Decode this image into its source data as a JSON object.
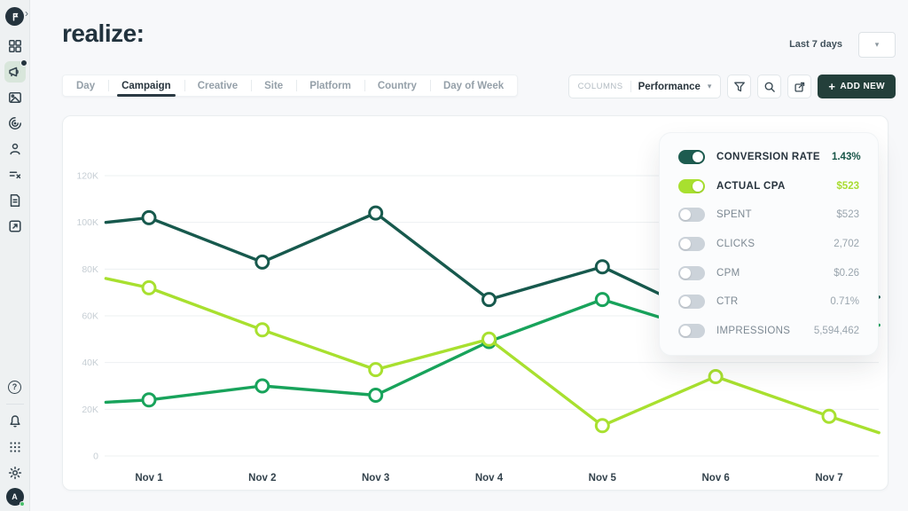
{
  "header": {
    "logo_text": "realize:",
    "date_range": "Last 7 days"
  },
  "glyphs": {
    "caret_down": "▾",
    "chevron_right": "›",
    "help": "?",
    "plus": "+"
  },
  "sidebar": {
    "items": [
      "grid",
      "megaphone",
      "image",
      "spiral",
      "person",
      "list",
      "document",
      "box-arrow"
    ],
    "selected": "megaphone",
    "badge_on": "megaphone",
    "bottom_items": [
      "help",
      "bell",
      "dots-grid",
      "gear",
      "avatar"
    ],
    "avatar_label": "A"
  },
  "toolbar": {
    "tabs": [
      "Day",
      "Campaign",
      "Creative",
      "Site",
      "Platform",
      "Country",
      "Day of Week"
    ],
    "active_tab": "Campaign",
    "columns_label": "COLUMNS",
    "columns_value": "Performance",
    "add_new_label": "ADD NEW"
  },
  "legend": {
    "rows": [
      {
        "label": "CONVERSION RATE",
        "value": "1.43%",
        "on": true,
        "color": "#1d5c50",
        "value_color": "#175447"
      },
      {
        "label": "ACTUAL CPA",
        "value": "$523",
        "on": true,
        "color": "#a8e02f",
        "value_color": "#a9dc32"
      },
      {
        "label": "SPENT",
        "value": "$523",
        "on": false
      },
      {
        "label": "CLICKS",
        "value": "2,702",
        "on": false
      },
      {
        "label": "CPM",
        "value": "$0.26",
        "on": false
      },
      {
        "label": "CTR",
        "value": "0.71%",
        "on": false
      },
      {
        "label": "IMPRESSIONS",
        "value": "5,594,462",
        "on": false
      }
    ]
  },
  "theme": {
    "dark_teal": "#17594d",
    "green": "#18a35b",
    "lime": "#a8e02f",
    "add_button_bg": "#233f3a",
    "selected_sidebar_bg": "#d8e6db"
  },
  "chart_data": {
    "type": "line",
    "title": "",
    "xlabel": "",
    "ylabel": "",
    "grid": true,
    "legend_position": "top-right overlay panel",
    "x_categories": [
      "Nov 1",
      "Nov 2",
      "Nov 3",
      "Nov 4",
      "Nov 5",
      "Nov 6",
      "Nov 7"
    ],
    "y_ticks": [
      {
        "label": "120K",
        "k": 120
      },
      {
        "label": "100K",
        "k": 100
      },
      {
        "label": "80K",
        "k": 80
      },
      {
        "label": "60K",
        "k": 60
      },
      {
        "label": "40K",
        "k": 40
      },
      {
        "label": "20K",
        "k": 20
      },
      {
        "label": "0",
        "k": 0
      }
    ],
    "ylim_k": [
      0,
      120
    ],
    "note": "x values: 1..7 = Nov 1..Nov 7; fractional endpoints are where lines meet the plot edges; values in thousands (K). Points with x 6..7.44 on the first and third series are hidden behind the legend panel.",
    "series": [
      {
        "name": "CONVERSION RATE",
        "color": "#17594d",
        "x": [
          0.62,
          1,
          2,
          3,
          4,
          5,
          6,
          7,
          7.44
        ],
        "values_k": [
          100,
          102,
          83,
          104,
          67,
          81,
          58,
          65,
          68
        ]
      },
      {
        "name": "unlabeled-green-series",
        "color": "#18a35b",
        "x": [
          0.62,
          1,
          2,
          3,
          4,
          5,
          6,
          7,
          7.44
        ],
        "values_k": [
          23,
          24,
          30,
          26,
          49,
          67,
          52,
          55,
          56
        ]
      },
      {
        "name": "ACTUAL CPA",
        "color": "#a8e02f",
        "x": [
          0.62,
          1,
          2,
          3,
          4,
          5,
          6,
          7,
          7.44
        ],
        "values_k": [
          76,
          72,
          54,
          37,
          50,
          13,
          34,
          17,
          10
        ]
      }
    ]
  }
}
